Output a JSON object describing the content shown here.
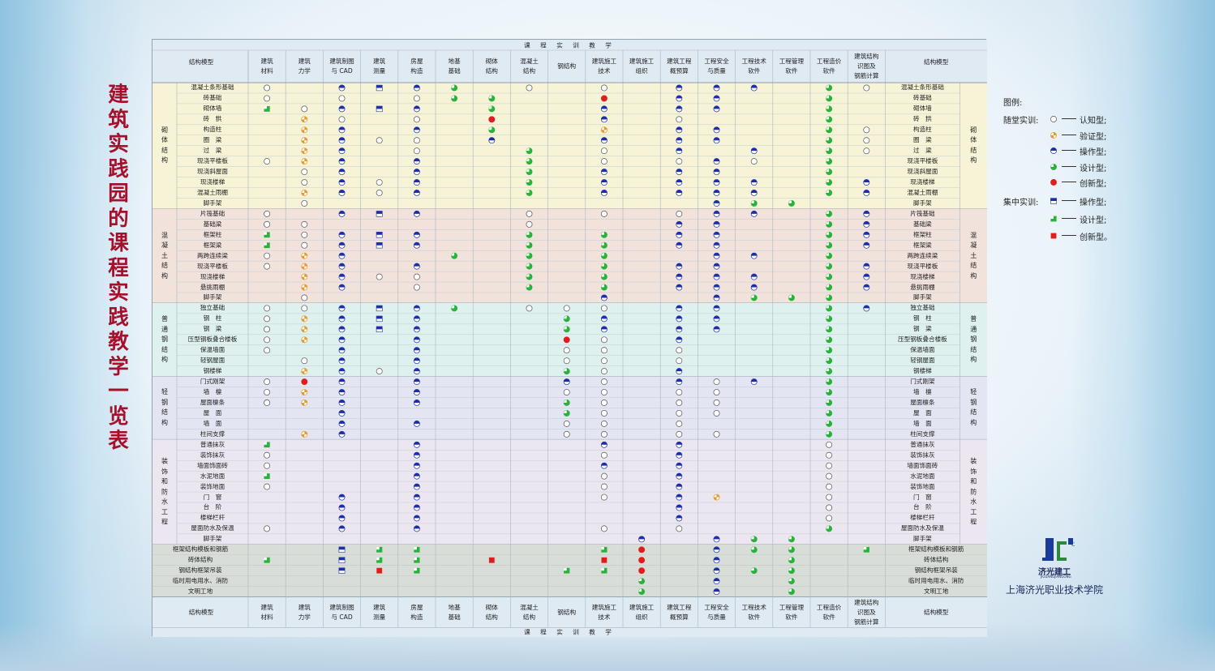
{
  "page_title": "建筑实践园的课程实践教学一览表",
  "band_label": "课 程 实 训 教 学",
  "header_left": "结构模型",
  "header_right": "结构模型",
  "courses": [
    "建筑材料",
    "建筑力学",
    "建筑制图与CAD",
    "建筑测量",
    "房屋构造",
    "地基基础",
    "砌体结构",
    "混凝土结构",
    "钢结构",
    "建筑施工技术",
    "建筑施工组织",
    "建筑工程概预算",
    "工程安全与质量",
    "工程技术软件",
    "工程管理软件",
    "工程造价软件",
    "建筑结构识图及钢筋计算"
  ],
  "course_display": [
    "建筑\n材料",
    "建筑\n力学",
    "建筑制图\n与 CAD",
    "建筑\n测量",
    "房屋\n构造",
    "地基\n基础",
    "砌体\n结构",
    "混凝土\n结构",
    "钢结构",
    "建筑施工\n技术",
    "建筑施工\n组织",
    "建筑工程\n概预算",
    "工程安全\n与质量",
    "工程技术\n软件",
    "工程管理\n软件",
    "工程造价\n软件",
    "建筑结构\n识图及\n钢筋计算"
  ],
  "groups": [
    {
      "name": "砌体结构",
      "bg": "#f7f3d6",
      "rows": [
        {
          "label": "混凝土条形基础",
          "marks": [
            "A",
            "",
            "B",
            "S",
            "B",
            "D",
            "",
            "A",
            "",
            "A",
            "",
            "B",
            "B",
            "B",
            "",
            "D",
            "A"
          ]
        },
        {
          "label": "砖基础",
          "marks": [
            "A",
            "",
            "A",
            "",
            "A",
            "D",
            "D",
            "",
            "",
            "E",
            "",
            "B",
            "B",
            "",
            "",
            "D",
            ""
          ]
        },
        {
          "label": "砌体墙",
          "marks": [
            "GS",
            "A",
            "B",
            "S",
            "B",
            "",
            "D",
            "",
            "",
            "B",
            "",
            "B",
            "B",
            "",
            "",
            "D",
            ""
          ]
        },
        {
          "label": "砖　拱",
          "marks": [
            "",
            "C",
            "A",
            "",
            "A",
            "",
            "E",
            "",
            "",
            "B",
            "",
            "A",
            "",
            "",
            "",
            "D",
            ""
          ]
        },
        {
          "label": "构造柱",
          "marks": [
            "",
            "C",
            "B",
            "",
            "B",
            "",
            "D",
            "",
            "",
            "C",
            "",
            "B",
            "B",
            "",
            "",
            "D",
            "A"
          ]
        },
        {
          "label": "圈　梁",
          "marks": [
            "",
            "C",
            "B",
            "A",
            "A",
            "",
            "B",
            "",
            "",
            "B",
            "",
            "B",
            "B",
            "",
            "",
            "D",
            "A"
          ]
        },
        {
          "label": "过　梁",
          "marks": [
            "",
            "C",
            "B",
            "",
            "A",
            "",
            "",
            "D",
            "",
            "A",
            "",
            "B",
            "",
            "B",
            "",
            "D",
            "A"
          ]
        },
        {
          "label": "现浇平楼板",
          "marks": [
            "A",
            "C",
            "B",
            "",
            "B",
            "",
            "",
            "D",
            "",
            "A",
            "",
            "A",
            "B",
            "A",
            "",
            "D",
            ""
          ]
        },
        {
          "label": "现浇斜屋面",
          "marks": [
            "",
            "A",
            "B",
            "",
            "B",
            "",
            "",
            "D",
            "",
            "B",
            "",
            "B",
            "B",
            "",
            "",
            "D",
            ""
          ]
        },
        {
          "label": "现浇楼梯",
          "marks": [
            "",
            "A",
            "B",
            "A",
            "B",
            "",
            "",
            "D",
            "",
            "B",
            "",
            "B",
            "B",
            "B",
            "",
            "D",
            "B"
          ]
        },
        {
          "label": "混凝土雨棚",
          "marks": [
            "",
            "C",
            "B",
            "A",
            "B",
            "",
            "",
            "D",
            "",
            "B",
            "",
            "B",
            "B",
            "B",
            "",
            "D",
            "B"
          ]
        },
        {
          "label": "脚手架",
          "marks": [
            "",
            "A",
            "",
            "",
            "",
            "",
            "",
            "",
            "",
            "",
            "",
            "",
            "B",
            "D",
            "D",
            "",
            ""
          ]
        }
      ]
    },
    {
      "name": "混凝土结构",
      "bg": "#f1e2dc",
      "rows": [
        {
          "label": "片筏基础",
          "marks": [
            "A",
            "",
            "B",
            "S",
            "B",
            "",
            "",
            "A",
            "",
            "A",
            "",
            "A",
            "B",
            "B",
            "",
            "D",
            "B"
          ]
        },
        {
          "label": "基础梁",
          "marks": [
            "A",
            "A",
            "",
            "",
            "",
            "",
            "",
            "A",
            "",
            "",
            "",
            "B",
            "B",
            "",
            "",
            "D",
            "B"
          ]
        },
        {
          "label": "框架柱",
          "marks": [
            "GS",
            "A",
            "B",
            "S",
            "B",
            "",
            "",
            "D",
            "",
            "D",
            "",
            "B",
            "B",
            "",
            "",
            "D",
            "B"
          ]
        },
        {
          "label": "框架梁",
          "marks": [
            "GS",
            "A",
            "B",
            "S",
            "B",
            "",
            "",
            "D",
            "",
            "D",
            "",
            "B",
            "B",
            "",
            "",
            "D",
            "B"
          ]
        },
        {
          "label": "两跨连续梁",
          "marks": [
            "A",
            "C",
            "B",
            "",
            "",
            "D",
            "",
            "D",
            "",
            "D",
            "",
            "",
            "B",
            "B",
            "",
            "D",
            ""
          ]
        },
        {
          "label": "现浇平楼板",
          "marks": [
            "A",
            "C",
            "B",
            "",
            "B",
            "",
            "",
            "D",
            "",
            "D",
            "",
            "B",
            "B",
            "",
            "",
            "D",
            "B"
          ]
        },
        {
          "label": "现浇楼梯",
          "marks": [
            "",
            "C",
            "B",
            "A",
            "A",
            "",
            "",
            "D",
            "",
            "D",
            "",
            "B",
            "B",
            "B",
            "",
            "D",
            "B"
          ]
        },
        {
          "label": "悬挑雨棚",
          "marks": [
            "",
            "C",
            "B",
            "",
            "A",
            "",
            "",
            "D",
            "",
            "D",
            "",
            "B",
            "B",
            "B",
            "",
            "D",
            "B"
          ]
        },
        {
          "label": "脚手架",
          "marks": [
            "",
            "A",
            "",
            "",
            "",
            "",
            "",
            "",
            "",
            "B",
            "",
            "",
            "B",
            "D",
            "D",
            "D",
            ""
          ]
        }
      ]
    },
    {
      "name": "普通钢结构",
      "bg": "#dff1ef",
      "rows": [
        {
          "label": "独立基础",
          "marks": [
            "A",
            "A",
            "B",
            "S",
            "B",
            "D",
            "",
            "A",
            "A",
            "A",
            "",
            "B",
            "B",
            "",
            "",
            "D",
            "B"
          ]
        },
        {
          "label": "钢　柱",
          "marks": [
            "A",
            "C",
            "B",
            "S",
            "B",
            "",
            "",
            "",
            "D",
            "B",
            "",
            "B",
            "B",
            "",
            "",
            "D",
            ""
          ]
        },
        {
          "label": "钢　梁",
          "marks": [
            "A",
            "C",
            "B",
            "S",
            "B",
            "",
            "",
            "",
            "D",
            "B",
            "",
            "B",
            "B",
            "",
            "",
            "D",
            ""
          ]
        },
        {
          "label": "压型钢板叠合楼板",
          "marks": [
            "A",
            "C",
            "B",
            "",
            "B",
            "",
            "",
            "",
            "E",
            "A",
            "",
            "B",
            "",
            "",
            "",
            "D",
            ""
          ]
        },
        {
          "label": "保温墙面",
          "marks": [
            "A",
            "",
            "B",
            "",
            "B",
            "",
            "",
            "",
            "A",
            "A",
            "",
            "A",
            "",
            "",
            "",
            "D",
            ""
          ]
        },
        {
          "label": "轻钢屋面",
          "marks": [
            "",
            "A",
            "B",
            "",
            "B",
            "",
            "",
            "",
            "A",
            "A",
            "",
            "A",
            "",
            "",
            "",
            "D",
            ""
          ]
        },
        {
          "label": "钢楼梯",
          "marks": [
            "",
            "C",
            "B",
            "A",
            "B",
            "",
            "",
            "",
            "D",
            "A",
            "",
            "B",
            "",
            "",
            "",
            "D",
            ""
          ]
        }
      ]
    },
    {
      "name": "轻钢结构",
      "bg": "#e3e5f2",
      "rows": [
        {
          "label": "门式刚架",
          "marks": [
            "A",
            "E",
            "B",
            "",
            "B",
            "",
            "",
            "",
            "B",
            "A",
            "",
            "B",
            "A",
            "B",
            "",
            "D",
            ""
          ]
        },
        {
          "label": "墙　檩",
          "marks": [
            "A",
            "C",
            "B",
            "",
            "B",
            "",
            "",
            "",
            "A",
            "A",
            "",
            "A",
            "A",
            "",
            "",
            "D",
            ""
          ]
        },
        {
          "label": "屋面檩条",
          "marks": [
            "A",
            "C",
            "B",
            "",
            "B",
            "",
            "",
            "",
            "D",
            "A",
            "",
            "A",
            "A",
            "",
            "",
            "D",
            ""
          ]
        },
        {
          "label": "屋　面",
          "marks": [
            "",
            "",
            "B",
            "",
            "",
            "",
            "",
            "",
            "D",
            "A",
            "",
            "A",
            "A",
            "",
            "",
            "D",
            ""
          ]
        },
        {
          "label": "墙　面",
          "marks": [
            "",
            "",
            "B",
            "",
            "B",
            "",
            "",
            "",
            "A",
            "A",
            "",
            "A",
            "",
            "",
            "",
            "D",
            ""
          ]
        },
        {
          "label": "柱间支撑",
          "marks": [
            "",
            "C",
            "B",
            "",
            "",
            "",
            "",
            "",
            "A",
            "A",
            "",
            "A",
            "A",
            "",
            "",
            "D",
            ""
          ]
        }
      ]
    },
    {
      "name": "装饰和防水工程",
      "bg": "#ece6f1",
      "rows": [
        {
          "label": "普通抹灰",
          "marks": [
            "GS",
            "",
            "",
            "",
            "B",
            "",
            "",
            "",
            "",
            "B",
            "",
            "B",
            "",
            "",
            "",
            "A",
            ""
          ]
        },
        {
          "label": "装饰抹灰",
          "marks": [
            "A",
            "",
            "",
            "",
            "B",
            "",
            "",
            "",
            "",
            "A",
            "",
            "B",
            "",
            "",
            "",
            "A",
            ""
          ]
        },
        {
          "label": "墙面饰面砖",
          "marks": [
            "A",
            "",
            "",
            "",
            "B",
            "",
            "",
            "",
            "",
            "B",
            "",
            "B",
            "",
            "",
            "",
            "A",
            ""
          ]
        },
        {
          "label": "水泥地面",
          "marks": [
            "GS",
            "",
            "",
            "",
            "B",
            "",
            "",
            "",
            "",
            "A",
            "",
            "B",
            "",
            "",
            "",
            "A",
            ""
          ]
        },
        {
          "label": "装饰地面",
          "marks": [
            "A",
            "",
            "",
            "",
            "B",
            "",
            "",
            "",
            "",
            "A",
            "",
            "B",
            "",
            "",
            "",
            "A",
            ""
          ]
        },
        {
          "label": "门　窗",
          "marks": [
            "",
            "",
            "B",
            "",
            "B",
            "",
            "",
            "",
            "",
            "A",
            "",
            "B",
            "C",
            "",
            "",
            "A",
            ""
          ]
        },
        {
          "label": "台　阶",
          "marks": [
            "",
            "",
            "B",
            "",
            "B",
            "",
            "",
            "",
            "",
            "",
            "",
            "B",
            "",
            "",
            "",
            "A",
            ""
          ]
        },
        {
          "label": "楼梯栏杆",
          "marks": [
            "",
            "",
            "B",
            "",
            "B",
            "",
            "",
            "",
            "",
            "",
            "",
            "B",
            "",
            "",
            "",
            "A",
            ""
          ]
        },
        {
          "label": "屋面防水及保温",
          "marks": [
            "A",
            "",
            "B",
            "",
            "B",
            "",
            "",
            "",
            "",
            "A",
            "",
            "A",
            "",
            "",
            "",
            "D",
            ""
          ]
        },
        {
          "label": "脚手架",
          "marks": [
            "",
            "",
            "",
            "",
            "",
            "",
            "",
            "",
            "",
            "",
            "B",
            "",
            "B",
            "D",
            "D",
            "",
            ""
          ]
        }
      ]
    }
  ],
  "bottom_rows": [
    {
      "label": "框架结构模板和钢筋",
      "marks": [
        "",
        "",
        "S",
        "GS",
        "GS",
        "",
        "",
        "",
        "",
        "GS",
        "E",
        "",
        "B",
        "D",
        "D",
        "",
        "GS"
      ]
    },
    {
      "label": "砖体结构",
      "marks": [
        "GS",
        "",
        "S",
        "GS",
        "GS",
        "",
        "RS",
        "",
        "",
        "RS",
        "E",
        "",
        "B",
        "",
        "D",
        "",
        ""
      ]
    },
    {
      "label": "钢结构框架吊装",
      "marks": [
        "",
        "",
        "S",
        "RS",
        "GS",
        "",
        "",
        "",
        "GS",
        "GS",
        "E",
        "",
        "B",
        "D",
        "D",
        "",
        ""
      ]
    },
    {
      "label": "临时用电用水、消防",
      "marks": [
        "",
        "",
        "",
        "",
        "",
        "",
        "",
        "",
        "",
        "",
        "D",
        "",
        "B",
        "",
        "D",
        "",
        ""
      ]
    },
    {
      "label": "文明工地",
      "marks": [
        "",
        "",
        "",
        "",
        "",
        "",
        "",
        "",
        "",
        "",
        "D",
        "",
        "B",
        "",
        "D",
        "",
        ""
      ]
    }
  ],
  "legend": {
    "title": "图例:",
    "classroom_group": "随堂实训:",
    "concentrated_group": "集中实训:",
    "items": [
      {
        "icon": "A",
        "label": "认知型;"
      },
      {
        "icon": "C",
        "label": "验证型;"
      },
      {
        "icon": "B",
        "label": "操作型;"
      },
      {
        "icon": "D",
        "label": "设计型;"
      },
      {
        "icon": "E",
        "label": "创新型;"
      },
      {
        "icon": "S",
        "label": "操作型;"
      },
      {
        "icon": "GS",
        "label": "设计型;"
      },
      {
        "icon": "RS",
        "label": "创新型。"
      }
    ]
  },
  "logo": {
    "name": "济光建工",
    "pinyin": "JIGUANGJIANGONG"
  },
  "school_name": "上海济光职业技术学院",
  "colors": {
    "title": "#a5102a",
    "blue": "#1c2fa8",
    "green": "#27b23a",
    "red": "#e01d1d",
    "orange": "#e59a2a",
    "border": "#93a4b1",
    "header_bg": "#dfeaf2"
  }
}
